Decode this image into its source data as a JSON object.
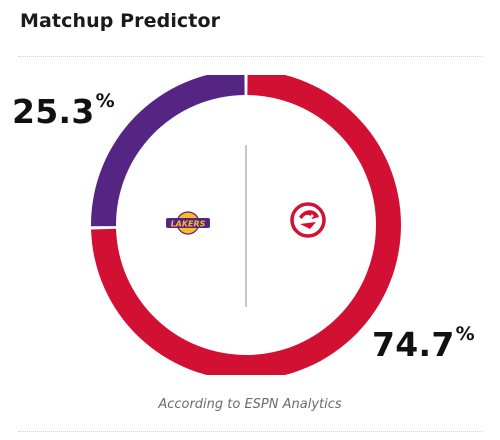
{
  "widget": {
    "title": "Matchup Predictor",
    "caption": "According to ESPN Analytics"
  },
  "teams": {
    "away": {
      "logo": "lakers-logo",
      "logo_text": "LAKERS",
      "percent_value": "25.3",
      "percent_symbol": "%",
      "color": "#552583"
    },
    "home": {
      "logo": "hawks-logo",
      "percent_value": "74.7",
      "percent_symbol": "%",
      "color": "#d21033"
    }
  },
  "chart_data": {
    "type": "pie",
    "style": "donut",
    "slices": [
      {
        "label": "Lakers",
        "value": 25.3,
        "color": "#552583"
      },
      {
        "label": "Hawks",
        "value": 74.7,
        "color": "#d21033"
      }
    ]
  }
}
